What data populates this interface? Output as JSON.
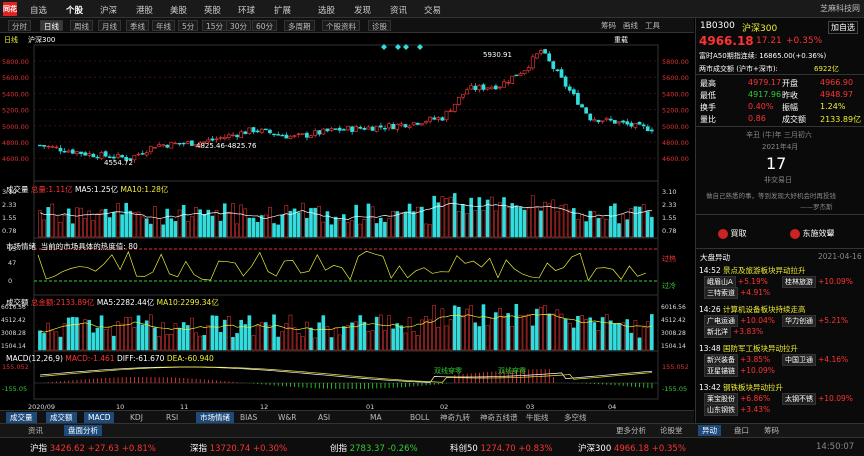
{
  "topnav": {
    "logo": "同花",
    "items": [
      "自选",
      "个股",
      "沪深",
      "港股",
      "美股",
      "英股",
      "环球",
      "扩展",
      "选股",
      "发现",
      "资讯",
      "交易"
    ],
    "active": 1,
    "user": "芝麻科技网"
  },
  "toolbar": {
    "items": [
      "分时",
      "日线",
      "周线",
      "月线",
      "季线",
      "年线",
      "5分",
      "15分",
      "30分",
      "60分",
      "多周期",
      "个股资料",
      "诊股"
    ],
    "active": 1,
    "right": [
      "筹码",
      "画线",
      "工具"
    ]
  },
  "chart": {
    "title": "日线",
    "index": "沪深300",
    "ctrl": "重载",
    "price": {
      "ticks": [
        "5800.00",
        "5600.00",
        "5400.00",
        "5200.00",
        "5000.00",
        "4800.00",
        "4600.00"
      ],
      "high_label": "5930.91",
      "low_label": "4554.72",
      "mid_label": "4825.46-4825.76"
    },
    "vol": {
      "title": "成交量",
      "total": "总量:1.11亿",
      "ma5": "MA5:1.25亿",
      "ma10": "MA10:1.28亿",
      "ticks": [
        "3.10",
        "2.33",
        "1.55",
        "0.78"
      ]
    },
    "mood": {
      "title": "市场情绪",
      "desc": "当前的市场具体的热度值: 80",
      "ticks": [
        "95",
        "47",
        "0"
      ],
      "hot": "过热",
      "cold": "过冷"
    },
    "amt": {
      "title": "成交额",
      "total": "总金额:2133.89亿",
      "ma5": "MA5:2282.44亿",
      "ma10": "MA10:2299.34亿",
      "ticks": [
        "6016.56",
        "4512.42",
        "3008.28",
        "1504.14"
      ]
    },
    "macd": {
      "title": "MACD(12,26,9)",
      "macd": "MACD:-1.461",
      "diff": "DIFF:-61.670",
      "dea": "DEA:-60.940",
      "ticks": [
        "155.052",
        "-155.05"
      ],
      "mark1": "双线穿零",
      "mark2": "双线穿零"
    },
    "xaxis": [
      "2020/09",
      "10",
      "11",
      "12",
      "01",
      "02",
      "03",
      "04"
    ]
  },
  "bottomtabs": [
    "成交量",
    "成交额",
    "MACD",
    "KDJ",
    "RSI",
    "市场情绪",
    "BIAS",
    "W&R",
    "ASI",
    "MA",
    "BOLL",
    "神奇九转",
    "神奇五线谱",
    "牛能线",
    "多空线"
  ],
  "bottomtabs_on": [
    0,
    1,
    2,
    5
  ],
  "infobar": {
    "tabs": [
      "资讯",
      "盘面分析"
    ],
    "right": [
      "更多分析",
      "论股堂"
    ],
    "rtabs": [
      "异动",
      "盘口",
      "筹码"
    ]
  },
  "ticker": [
    {
      "n": "沪指",
      "v": "3426.62",
      "c": "+27.63",
      "p": "+0.81%"
    },
    {
      "n": "深指",
      "v": "13720.74",
      "c": "+0.30%",
      "p": ""
    },
    {
      "n": "创指",
      "v": "2783.37",
      "c": "-0.26%",
      "p": ""
    },
    {
      "n": "科创50",
      "v": "1274.70",
      "c": "+0.83%",
      "p": ""
    },
    {
      "n": "沪深300",
      "v": "4966.18",
      "c": "+0.35%",
      "p": ""
    }
  ],
  "clock": "14:50:07",
  "quote": {
    "code": "1B0300",
    "name": "沪深300",
    "btn": "加自选",
    "price": "4966.18",
    "chg": "17.21",
    "pct": "+0.35%",
    "a50": "富时A50期指连续: 16865.00(+0.36%)",
    "turnover_label": "两市成交额 (沪市+深市):",
    "turnover": "6922亿",
    "rows": [
      [
        "最高",
        "4979.17",
        "开盘",
        "4966.90"
      ],
      [
        "最低",
        "4917.96",
        "昨收",
        "4948.97"
      ],
      [
        "换手",
        "0.40%",
        "振幅",
        "1.24%"
      ],
      [
        "量比",
        "0.86",
        "成交额",
        "2133.89亿"
      ]
    ],
    "calendar": "辛丑 (牛)年 三月初六",
    "month": "2021年4月",
    "day": "17",
    "dayname": "非交易日",
    "quote1": "做自己熟悉的事，等到发现大好机会时再投钱",
    "quote2": "——罗杰斯",
    "links": [
      "買取",
      "东施效颦"
    ]
  },
  "news": {
    "title": "大盘异动",
    "date": "2021-04-16",
    "items": [
      {
        "t": "14:52",
        "h": "景点及旅游板块异动拉升",
        "s": [
          [
            "峨眉山A",
            "+5.19%"
          ],
          [
            "桂林旅游",
            "+10.09%"
          ],
          [
            "三特索道",
            "+4.91%"
          ]
        ]
      },
      {
        "t": "14:26",
        "h": "计算机设备板块持续走高",
        "s": [
          [
            "广电运通",
            "+10.04%"
          ],
          [
            "华力创通",
            "+5.21%"
          ],
          [
            "新北洋",
            "+3.83%"
          ]
        ]
      },
      {
        "t": "13:48",
        "h": "国防军工板块异动拉升",
        "s": [
          [
            "新兴装备",
            "+3.85%"
          ],
          [
            "中国卫通",
            "+4.16%"
          ],
          [
            "亚星锚链",
            "+10.09%"
          ]
        ]
      },
      {
        "t": "13:42",
        "h": "钢铁板块异动拉升",
        "s": [
          [
            "莱宝股份",
            "+6.86%"
          ],
          [
            "太钢不锈",
            "+10.09%"
          ],
          [
            "山东钢铁",
            "+3.43%"
          ]
        ]
      }
    ]
  }
}
